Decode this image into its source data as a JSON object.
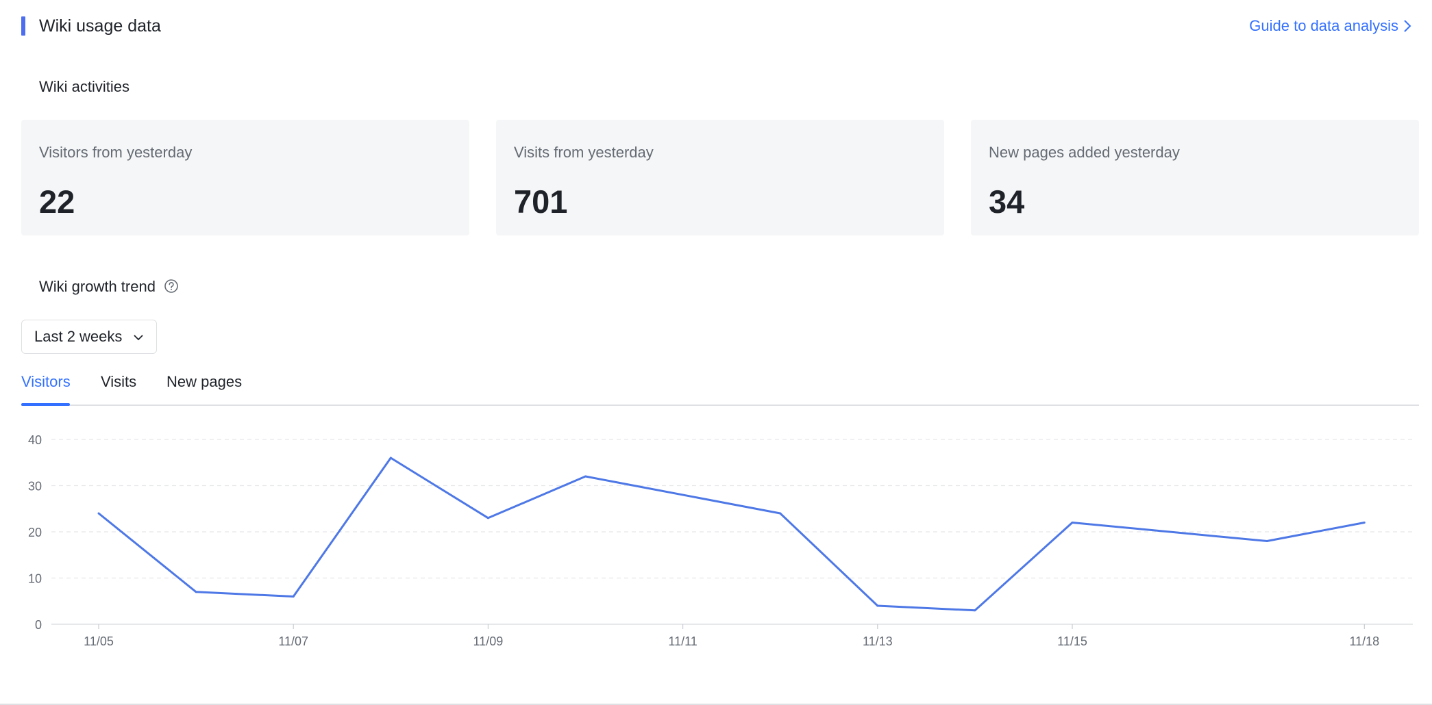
{
  "header": {
    "title": "Wiki usage data",
    "guide_link": "Guide to data analysis"
  },
  "activities": {
    "section_title": "Wiki activities",
    "cards": [
      {
        "label": "Visitors from yesterday",
        "value": "22"
      },
      {
        "label": "Visits from yesterday",
        "value": "701"
      },
      {
        "label": "New pages added yesterday",
        "value": "34"
      }
    ]
  },
  "growth": {
    "section_title": "Wiki growth trend",
    "range_select": "Last 2 weeks",
    "tabs": [
      {
        "label": "Visitors"
      },
      {
        "label": "Visits"
      },
      {
        "label": "New pages"
      }
    ],
    "active_tab": 0
  },
  "colors": {
    "accent": "#3370ff",
    "line": "#4e78e6",
    "title_bar": "#4e6ef2"
  },
  "icons": {
    "guide": "chevron-right-icon",
    "help": "question-circle-icon",
    "dropdown": "chevron-down-icon"
  },
  "chart_data": {
    "type": "line",
    "x": [
      "11/05",
      "11/06",
      "11/07",
      "11/08",
      "11/09",
      "11/10",
      "11/12",
      "11/13",
      "11/14",
      "11/15",
      "11/17",
      "11/18"
    ],
    "series": [
      {
        "values": [
          24,
          7,
          6,
          36,
          23,
          32,
          24,
          4,
          3,
          22,
          18,
          22
        ]
      }
    ],
    "x_ticks": [
      "11/05",
      "11/07",
      "11/09",
      "11/11",
      "11/13",
      "11/15",
      "11/18"
    ],
    "yticks": [
      0,
      10,
      20,
      30,
      40
    ],
    "ylim": [
      0,
      40
    ],
    "grid": "horizontal-dashed",
    "legend": "none"
  }
}
